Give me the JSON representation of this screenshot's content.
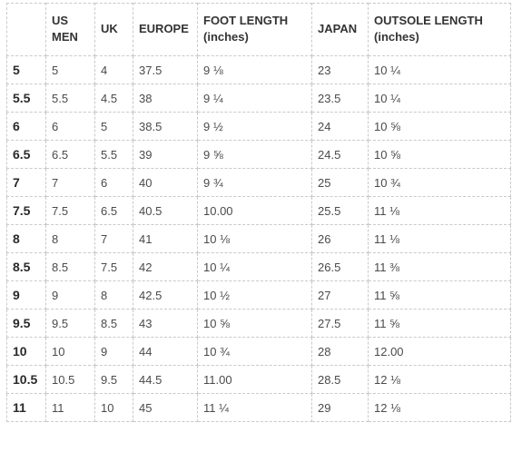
{
  "table": {
    "headers": [
      "",
      "US MEN",
      "UK",
      "EUROPE",
      "FOOT LENGTH (inches)",
      "JAPAN",
      "OUTSOLE LENGTH (inches)"
    ],
    "rows": [
      [
        "5",
        "5",
        "4",
        "37.5",
        "9 ⅛",
        "23",
        "10 ¼"
      ],
      [
        "5.5",
        "5.5",
        "4.5",
        "38",
        "9 ¼",
        "23.5",
        "10 ¼"
      ],
      [
        "6",
        "6",
        "5",
        "38.5",
        "9 ½",
        "24",
        "10 ⅝"
      ],
      [
        "6.5",
        "6.5",
        "5.5",
        "39",
        "9 ⅝",
        "24.5",
        "10 ⅝"
      ],
      [
        "7",
        "7",
        "6",
        "40",
        "9 ¾",
        "25",
        "10 ¾"
      ],
      [
        "7.5",
        "7.5",
        "6.5",
        "40.5",
        "10.00",
        "25.5",
        "11 ⅛"
      ],
      [
        "8",
        "8",
        "7",
        "41",
        "10 ⅛",
        "26",
        "11 ⅛"
      ],
      [
        "8.5",
        "8.5",
        "7.5",
        "42",
        "10 ¼",
        "26.5",
        "11 ⅜"
      ],
      [
        "9",
        "9",
        "8",
        "42.5",
        "10 ½",
        "27",
        "11 ⅝"
      ],
      [
        "9.5",
        "9.5",
        "8.5",
        "43",
        "10 ⅝",
        "27.5",
        "11 ⅝"
      ],
      [
        "10",
        "10",
        "9",
        "44",
        "10 ¾",
        "28",
        "12.00"
      ],
      [
        "10.5",
        "10.5",
        "9.5",
        "44.5",
        "11.00",
        "28.5",
        "12 ⅛"
      ],
      [
        "11",
        "11",
        "10",
        "45",
        "11 ¼",
        "29",
        "12 ⅛"
      ]
    ]
  }
}
